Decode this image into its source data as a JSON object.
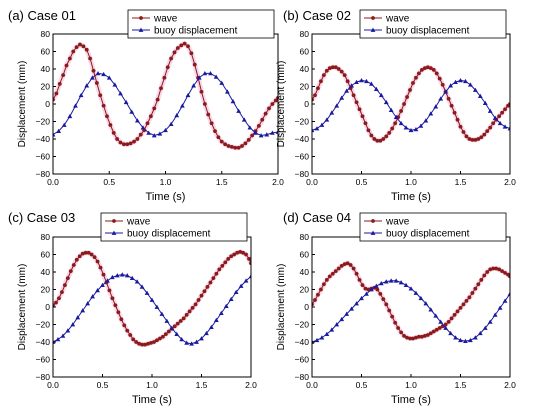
{
  "chart_data": [
    {
      "type": "line",
      "title": "(a) Case 01",
      "xlabel": "Time (s)",
      "ylabel": "Displacement (mm)",
      "xlim": [
        0,
        2.0
      ],
      "ylim": [
        -80,
        80
      ],
      "xticks": [
        "0.0",
        "0.5",
        "1.0",
        "1.5",
        "2.0"
      ],
      "yticks": [
        "−80",
        "−60",
        "−40",
        "−20",
        "0",
        "20",
        "40",
        "60",
        "80"
      ],
      "legend_position": "top-right",
      "series": [
        {
          "name": "wave",
          "color": "#8b1a1a",
          "marker": "circle",
          "x": [
            0.0,
            0.03,
            0.06,
            0.09,
            0.12,
            0.15,
            0.18,
            0.21,
            0.24,
            0.27,
            0.3,
            0.33,
            0.36,
            0.39,
            0.42,
            0.45,
            0.48,
            0.51,
            0.54,
            0.57,
            0.6,
            0.63,
            0.66,
            0.69,
            0.72,
            0.75,
            0.78,
            0.81,
            0.84,
            0.87,
            0.9,
            0.93,
            0.96,
            0.99,
            1.02,
            1.05,
            1.08,
            1.11,
            1.14,
            1.17,
            1.2,
            1.23,
            1.26,
            1.29,
            1.32,
            1.35,
            1.38,
            1.41,
            1.44,
            1.47,
            1.5,
            1.53,
            1.56,
            1.59,
            1.62,
            1.65,
            1.68,
            1.71,
            1.74,
            1.77,
            1.8,
            1.83,
            1.86,
            1.89,
            1.92,
            1.95,
            1.98,
            2.0
          ],
          "y": [
            5,
            12,
            23,
            33,
            44,
            52,
            60,
            65,
            68,
            66,
            62,
            52,
            38,
            24,
            10,
            -2,
            -14,
            -24,
            -33,
            -40,
            -44,
            -46,
            -46,
            -45,
            -43,
            -40,
            -35,
            -30,
            -22,
            -14,
            -5,
            5,
            18,
            30,
            42,
            52,
            59,
            64,
            67,
            69,
            66,
            58,
            45,
            30,
            14,
            0,
            -12,
            -22,
            -31,
            -38,
            -43,
            -46,
            -48,
            -49,
            -50,
            -50,
            -48,
            -45,
            -41,
            -36,
            -31,
            -25,
            -18,
            -11,
            -5,
            0,
            4,
            7
          ]
        },
        {
          "name": "buoy displacement",
          "color": "#1a1aa0",
          "marker": "triangle",
          "x": [
            0.0,
            0.05,
            0.1,
            0.15,
            0.2,
            0.25,
            0.3,
            0.35,
            0.4,
            0.45,
            0.5,
            0.55,
            0.6,
            0.65,
            0.7,
            0.75,
            0.8,
            0.85,
            0.9,
            0.95,
            1.0,
            1.05,
            1.1,
            1.15,
            1.2,
            1.25,
            1.3,
            1.35,
            1.4,
            1.45,
            1.5,
            1.55,
            1.6,
            1.65,
            1.7,
            1.75,
            1.8,
            1.85,
            1.9,
            1.95,
            2.0
          ],
          "y": [
            -35,
            -31,
            -24,
            -14,
            -2,
            10,
            21,
            30,
            35,
            34,
            30,
            22,
            12,
            2,
            -9,
            -19,
            -27,
            -33,
            -36,
            -34,
            -30,
            -23,
            -13,
            -2,
            10,
            21,
            30,
            35,
            35,
            31,
            24,
            14,
            3,
            -8,
            -18,
            -27,
            -33,
            -36,
            -35,
            -33,
            -32
          ]
        }
      ]
    },
    {
      "type": "line",
      "title": "(b) Case 02",
      "xlabel": "Time (s)",
      "ylabel": "Displacement (mm)",
      "xlim": [
        0,
        2.0
      ],
      "ylim": [
        -80,
        80
      ],
      "xticks": [
        "0.0",
        "0.5",
        "1.0",
        "1.5",
        "2.0"
      ],
      "yticks": [
        "−80",
        "−60",
        "−40",
        "−20",
        "0",
        "20",
        "40",
        "60",
        "80"
      ],
      "legend_position": "top-right",
      "series": [
        {
          "name": "wave",
          "color": "#8b1a1a",
          "marker": "circle",
          "x": [
            0.0,
            0.03,
            0.06,
            0.09,
            0.12,
            0.15,
            0.18,
            0.21,
            0.24,
            0.27,
            0.3,
            0.33,
            0.36,
            0.39,
            0.42,
            0.45,
            0.48,
            0.51,
            0.54,
            0.57,
            0.6,
            0.63,
            0.66,
            0.69,
            0.72,
            0.75,
            0.78,
            0.81,
            0.84,
            0.87,
            0.9,
            0.93,
            0.96,
            0.99,
            1.02,
            1.05,
            1.08,
            1.11,
            1.14,
            1.17,
            1.2,
            1.23,
            1.26,
            1.29,
            1.32,
            1.35,
            1.38,
            1.41,
            1.44,
            1.47,
            1.5,
            1.53,
            1.56,
            1.59,
            1.62,
            1.65,
            1.68,
            1.71,
            1.74,
            1.77,
            1.8,
            1.83,
            1.86,
            1.89,
            1.92,
            1.95,
            1.98,
            2.0
          ],
          "y": [
            5,
            10,
            18,
            26,
            33,
            38,
            41,
            42,
            42,
            40,
            37,
            33,
            26,
            18,
            10,
            2,
            -6,
            -14,
            -22,
            -30,
            -36,
            -40,
            -42,
            -42,
            -40,
            -37,
            -33,
            -28,
            -22,
            -15,
            -8,
            0,
            8,
            16,
            24,
            30,
            35,
            39,
            41,
            42,
            41,
            39,
            35,
            29,
            22,
            14,
            6,
            -2,
            -10,
            -18,
            -26,
            -32,
            -37,
            -40,
            -41,
            -41,
            -40,
            -38,
            -35,
            -31,
            -27,
            -22,
            -18,
            -14,
            -10,
            -6,
            -2,
            0
          ]
        },
        {
          "name": "buoy displacement",
          "color": "#1a1aa0",
          "marker": "triangle",
          "x": [
            0.0,
            0.05,
            0.1,
            0.15,
            0.2,
            0.25,
            0.3,
            0.35,
            0.4,
            0.45,
            0.5,
            0.55,
            0.6,
            0.65,
            0.7,
            0.75,
            0.8,
            0.85,
            0.9,
            0.95,
            1.0,
            1.05,
            1.1,
            1.15,
            1.2,
            1.25,
            1.3,
            1.35,
            1.4,
            1.45,
            1.5,
            1.55,
            1.6,
            1.65,
            1.7,
            1.75,
            1.8,
            1.85,
            1.9,
            1.95,
            2.0
          ],
          "y": [
            -30,
            -28,
            -24,
            -18,
            -10,
            -2,
            7,
            15,
            21,
            25,
            27,
            26,
            23,
            17,
            10,
            2,
            -7,
            -15,
            -22,
            -27,
            -30,
            -29,
            -25,
            -19,
            -11,
            -3,
            6,
            14,
            21,
            25,
            27,
            26,
            22,
            16,
            9,
            1,
            -8,
            -16,
            -22,
            -26,
            -28
          ]
        }
      ]
    },
    {
      "type": "line",
      "title": "(c) Case 03",
      "xlabel": "Time (s)",
      "ylabel": "Displacement (mm)",
      "xlim": [
        0,
        2.0
      ],
      "ylim": [
        -80,
        80
      ],
      "xticks": [
        "0.0",
        "0.5",
        "1.0",
        "1.5",
        "2.0"
      ],
      "yticks": [
        "−80",
        "−60",
        "−40",
        "−20",
        "0",
        "20",
        "40",
        "60",
        "80"
      ],
      "legend_position": "top-right",
      "series": [
        {
          "name": "wave",
          "color": "#8b1a1a",
          "marker": "circle",
          "x": [
            0.0,
            0.03,
            0.06,
            0.09,
            0.12,
            0.15,
            0.18,
            0.21,
            0.24,
            0.27,
            0.3,
            0.33,
            0.36,
            0.39,
            0.42,
            0.45,
            0.48,
            0.51,
            0.54,
            0.57,
            0.6,
            0.63,
            0.66,
            0.69,
            0.72,
            0.75,
            0.78,
            0.81,
            0.84,
            0.87,
            0.9,
            0.93,
            0.96,
            0.99,
            1.02,
            1.05,
            1.08,
            1.11,
            1.14,
            1.17,
            1.2,
            1.23,
            1.26,
            1.29,
            1.32,
            1.35,
            1.38,
            1.41,
            1.44,
            1.47,
            1.5,
            1.53,
            1.56,
            1.59,
            1.62,
            1.65,
            1.68,
            1.71,
            1.74,
            1.77,
            1.8,
            1.83,
            1.86,
            1.89,
            1.92,
            1.95,
            1.98,
            2.0
          ],
          "y": [
            2,
            5,
            10,
            17,
            25,
            33,
            41,
            48,
            54,
            58,
            61,
            62,
            62,
            60,
            57,
            52,
            45,
            37,
            28,
            19,
            10,
            2,
            -6,
            -14,
            -21,
            -27,
            -32,
            -37,
            -40,
            -42,
            -43,
            -43,
            -42,
            -41,
            -40,
            -38,
            -36,
            -34,
            -31,
            -28,
            -25,
            -22,
            -19,
            -16,
            -13,
            -9,
            -5,
            -1,
            3,
            8,
            13,
            18,
            23,
            28,
            33,
            38,
            43,
            47,
            51,
            55,
            58,
            60,
            62,
            63,
            62,
            60,
            55,
            50
          ]
        },
        {
          "name": "buoy displacement",
          "color": "#1a1aa0",
          "marker": "triangle",
          "x": [
            0.0,
            0.05,
            0.1,
            0.15,
            0.2,
            0.25,
            0.3,
            0.35,
            0.4,
            0.45,
            0.5,
            0.55,
            0.6,
            0.65,
            0.7,
            0.75,
            0.8,
            0.85,
            0.9,
            0.95,
            1.0,
            1.05,
            1.1,
            1.15,
            1.2,
            1.25,
            1.3,
            1.35,
            1.4,
            1.45,
            1.5,
            1.55,
            1.6,
            1.65,
            1.7,
            1.75,
            1.8,
            1.85,
            1.9,
            1.95,
            2.0
          ],
          "y": [
            -40,
            -37,
            -33,
            -27,
            -20,
            -12,
            -4,
            4,
            12,
            19,
            25,
            30,
            34,
            36,
            37,
            36,
            33,
            29,
            23,
            16,
            8,
            0,
            -8,
            -16,
            -24,
            -31,
            -37,
            -41,
            -42,
            -40,
            -36,
            -30,
            -23,
            -15,
            -7,
            1,
            9,
            17,
            24,
            30,
            35
          ]
        }
      ]
    },
    {
      "type": "line",
      "title": "(d) Case 04",
      "xlabel": "Time (s)",
      "ylabel": "Displacement (mm)",
      "xlim": [
        0,
        2.0
      ],
      "ylim": [
        -80,
        80
      ],
      "xticks": [
        "0.0",
        "0.5",
        "1.0",
        "1.5",
        "2.0"
      ],
      "yticks": [
        "−80",
        "−60",
        "−40",
        "−20",
        "0",
        "20",
        "40",
        "60",
        "80"
      ],
      "legend_position": "top-right",
      "series": [
        {
          "name": "wave",
          "color": "#8b1a1a",
          "marker": "circle",
          "x": [
            0.0,
            0.03,
            0.06,
            0.09,
            0.12,
            0.15,
            0.18,
            0.21,
            0.24,
            0.27,
            0.3,
            0.33,
            0.36,
            0.39,
            0.42,
            0.45,
            0.48,
            0.51,
            0.54,
            0.57,
            0.6,
            0.63,
            0.66,
            0.69,
            0.72,
            0.75,
            0.78,
            0.81,
            0.84,
            0.87,
            0.9,
            0.93,
            0.96,
            0.99,
            1.02,
            1.05,
            1.08,
            1.11,
            1.14,
            1.17,
            1.2,
            1.23,
            1.26,
            1.29,
            1.32,
            1.35,
            1.38,
            1.41,
            1.44,
            1.47,
            1.5,
            1.53,
            1.56,
            1.59,
            1.62,
            1.65,
            1.68,
            1.71,
            1.74,
            1.77,
            1.8,
            1.83,
            1.86,
            1.89,
            1.92,
            1.95,
            1.98,
            2.0
          ],
          "y": [
            3,
            8,
            14,
            20,
            26,
            31,
            35,
            38,
            41,
            44,
            47,
            49,
            50,
            48,
            44,
            38,
            31,
            25,
            21,
            20,
            21,
            22,
            20,
            15,
            9,
            3,
            -4,
            -11,
            -18,
            -24,
            -29,
            -33,
            -35,
            -36,
            -36,
            -35,
            -34,
            -34,
            -33,
            -32,
            -30,
            -28,
            -26,
            -24,
            -22,
            -20,
            -17,
            -13,
            -9,
            -5,
            -1,
            3,
            7,
            11,
            16,
            21,
            26,
            31,
            36,
            40,
            43,
            44,
            44,
            43,
            41,
            39,
            37,
            35
          ]
        },
        {
          "name": "buoy displacement",
          "color": "#1a1aa0",
          "marker": "triangle",
          "x": [
            0.0,
            0.05,
            0.1,
            0.15,
            0.2,
            0.25,
            0.3,
            0.35,
            0.4,
            0.45,
            0.5,
            0.55,
            0.6,
            0.65,
            0.7,
            0.75,
            0.8,
            0.85,
            0.9,
            0.95,
            1.0,
            1.05,
            1.1,
            1.15,
            1.2,
            1.25,
            1.3,
            1.35,
            1.4,
            1.45,
            1.5,
            1.55,
            1.6,
            1.65,
            1.7,
            1.75,
            1.8,
            1.85,
            1.9,
            1.95,
            2.0
          ],
          "y": [
            -40,
            -38,
            -35,
            -31,
            -26,
            -20,
            -14,
            -8,
            -2,
            4,
            10,
            15,
            20,
            24,
            27,
            29,
            30,
            30,
            28,
            25,
            21,
            16,
            10,
            4,
            -3,
            -10,
            -17,
            -24,
            -30,
            -35,
            -38,
            -39,
            -38,
            -35,
            -30,
            -24,
            -17,
            -9,
            -1,
            7,
            15
          ]
        }
      ]
    }
  ]
}
